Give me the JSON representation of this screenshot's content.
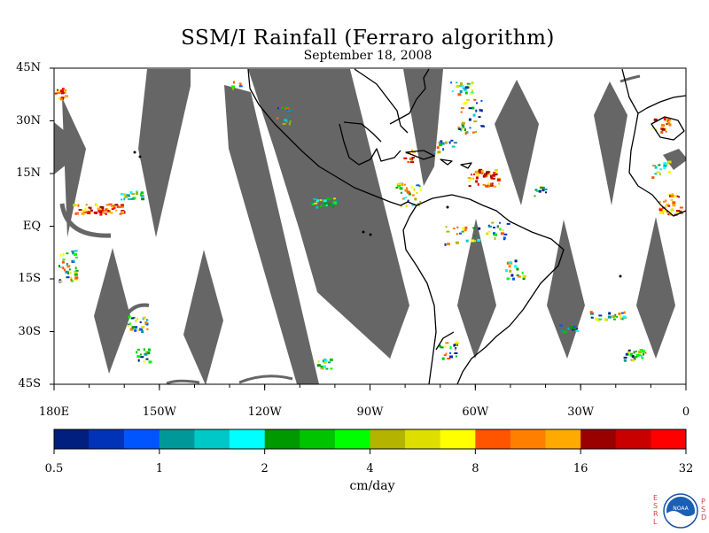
{
  "title": "SSM/I Rainfall (Ferraro algorithm)",
  "subtitle": "September 18, 2008",
  "lat_labels": [
    {
      "lat": 45,
      "text": "45N"
    },
    {
      "lat": 30,
      "text": "30N"
    },
    {
      "lat": 15,
      "text": "15N"
    },
    {
      "lat": 0,
      "text": "EQ"
    },
    {
      "lat": -15,
      "text": "15S"
    },
    {
      "lat": -30,
      "text": "30S"
    },
    {
      "lat": -45,
      "text": "45S"
    }
  ],
  "lon_labels": [
    {
      "lon": -180,
      "text": "180E"
    },
    {
      "lon": -150,
      "text": "150W"
    },
    {
      "lon": -120,
      "text": "120W"
    },
    {
      "lon": -90,
      "text": "90W"
    },
    {
      "lon": -60,
      "text": "60W"
    },
    {
      "lon": -30,
      "text": "30W"
    },
    {
      "lon": 0,
      "text": "0"
    }
  ],
  "colorbar": {
    "units": "cm/day",
    "tick_labels": [
      "0.5",
      "1",
      "2",
      "4",
      "8",
      "16",
      "32"
    ],
    "colors": [
      "#001f7f",
      "#0033b8",
      "#0055ff",
      "#009999",
      "#00c8c8",
      "#00ffff",
      "#009900",
      "#00c400",
      "#00ff00",
      "#b3b300",
      "#dede00",
      "#ffff00",
      "#ff5500",
      "#ff8000",
      "#ffaa00",
      "#990000",
      "#c80000",
      "#ff0000"
    ]
  },
  "logo": {
    "left_letters": [
      "E",
      "S",
      "R",
      "L"
    ],
    "right_letters": [
      "P",
      "S",
      "D"
    ],
    "emblem_text": "NOAA"
  },
  "map": {
    "lon_range": [
      -180,
      0
    ],
    "lat_range": [
      -45,
      45
    ],
    "swath_gap_color": "#666666",
    "coast_color": "#000000"
  }
}
